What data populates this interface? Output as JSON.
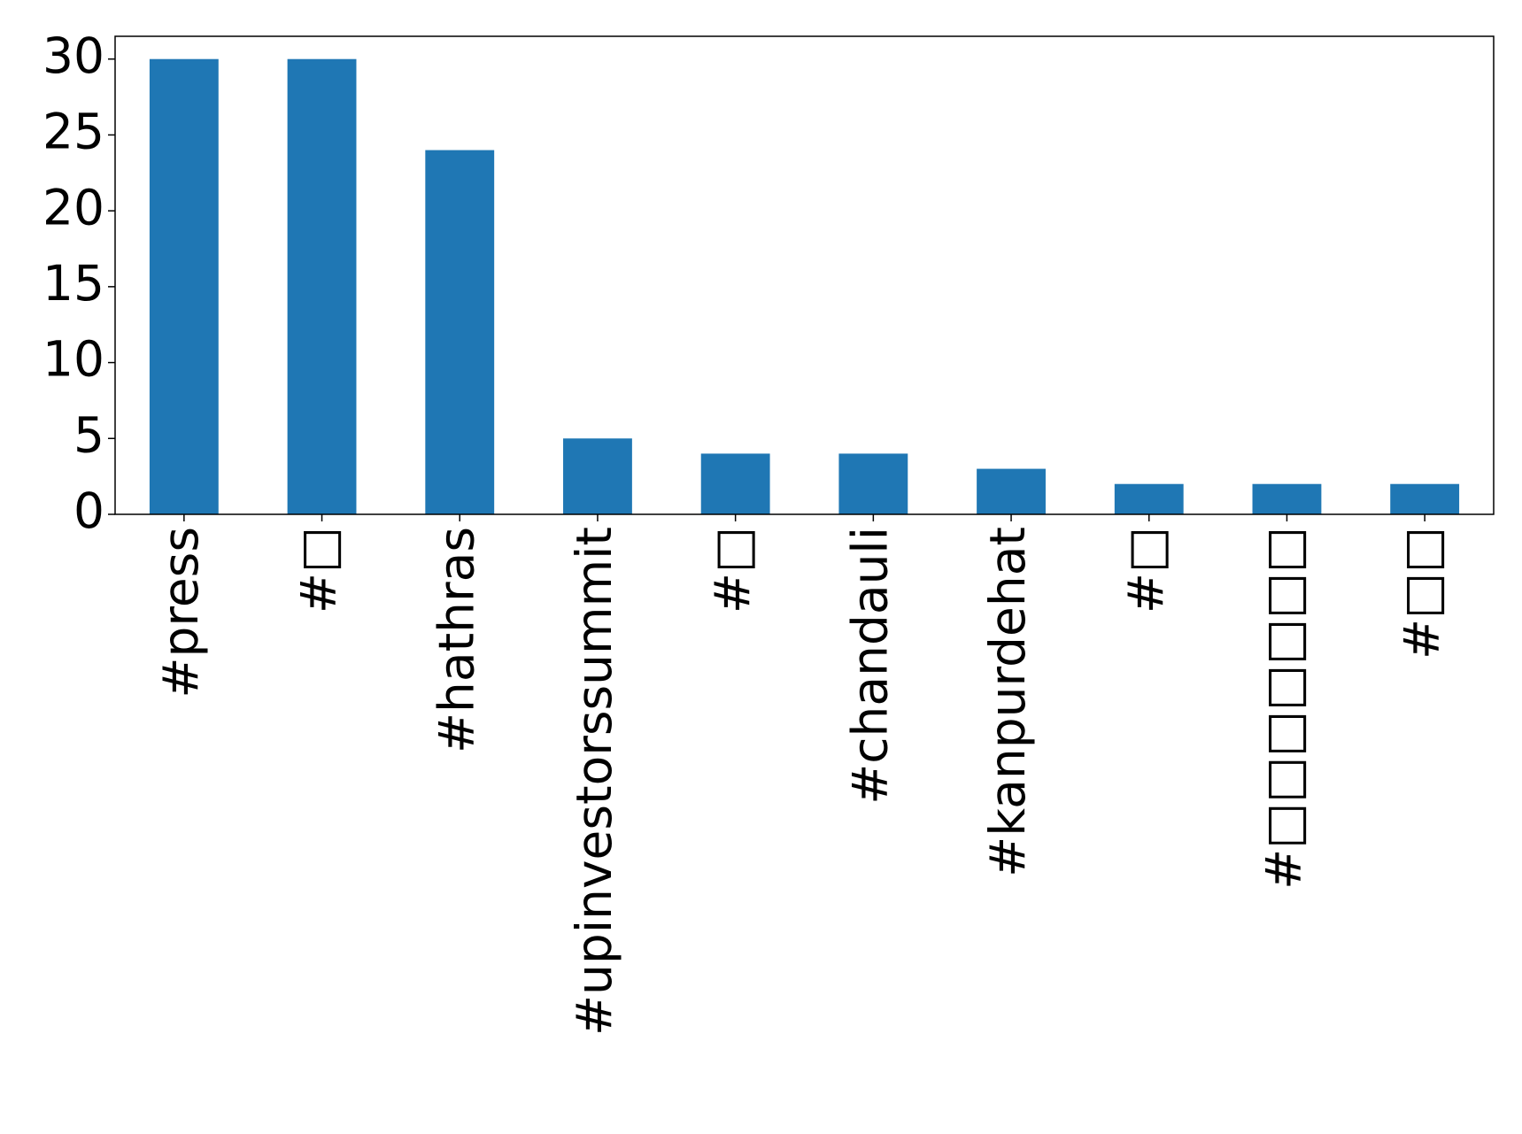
{
  "chart_data": {
    "type": "bar",
    "categories": [
      "#press",
      "#□",
      "#hathras",
      "#upinvestorssummit",
      "#□",
      "#chandauli",
      "#kanpurdehat",
      "#□",
      "#□□□□□□□",
      "#□□"
    ],
    "values": [
      30,
      30,
      24,
      5,
      4,
      4,
      3,
      2,
      2,
      2
    ],
    "color": "#1f77b4",
    "ylim": [
      0,
      31.5
    ],
    "yticks": [
      0,
      5,
      10,
      15,
      20,
      25,
      30
    ],
    "grid": false
  }
}
